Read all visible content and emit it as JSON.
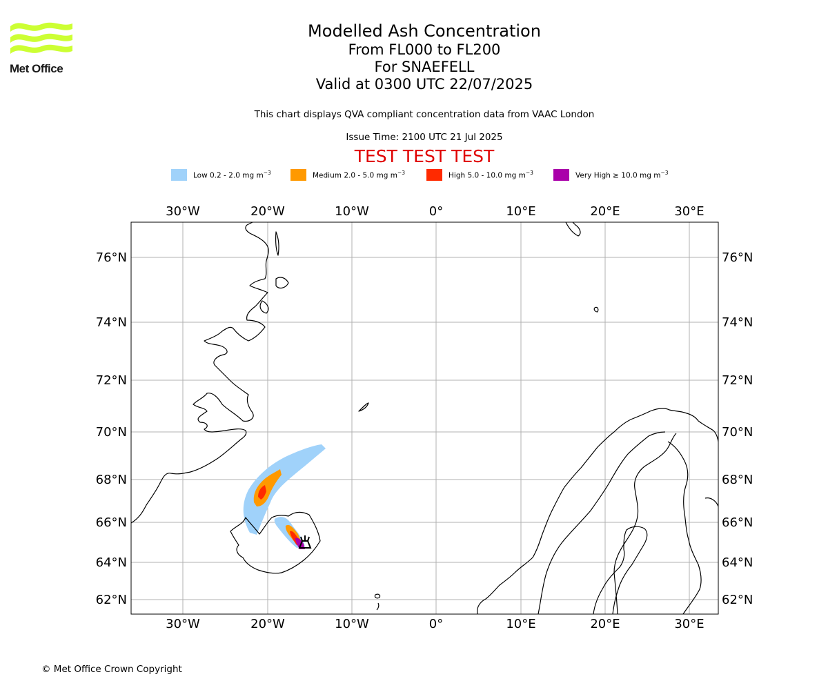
{
  "header": {
    "logo_text": "Met Office",
    "title": "Modelled Ash Concentration",
    "level_range": "From FL000 to FL200",
    "volcano": "For SNAEFELL",
    "valid_time": "Valid at 0300 UTC 22/07/2025",
    "description": "This chart displays QVA compliant concentration data from VAAC London",
    "issue_time": "Issue Time: 2100 UTC 21 Jul 2025",
    "test_banner": "TEST TEST TEST"
  },
  "legend": [
    {
      "label": "Low 0.2 - 2.0 mg m",
      "color": "#a0d2fa"
    },
    {
      "label": "Medium 2.0 - 5.0 mg m",
      "color": "#ff9900"
    },
    {
      "label": "High 5.0 - 10.0 mg m",
      "color": "#ff2a00"
    },
    {
      "label": "Very High ≥ 10.0 mg m",
      "color": "#aa00aa"
    }
  ],
  "legend_unit_exp": "−3",
  "map": {
    "lon_ticks": [
      "30°W",
      "20°W",
      "10°W",
      "0°",
      "10°E",
      "20°E",
      "30°E"
    ],
    "lat_ticks": [
      "76°N",
      "74°N",
      "72°N",
      "70°N",
      "68°N",
      "66°N",
      "64°N",
      "62°N"
    ],
    "gridlines": true,
    "source_volcano_marker": "volcano-symbol-icon"
  },
  "footer": {
    "copyright": "© Met Office Crown Copyright"
  }
}
